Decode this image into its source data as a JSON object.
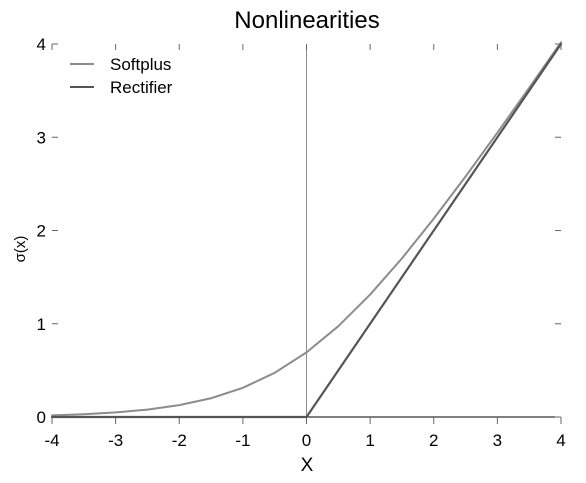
{
  "chart_data": {
    "type": "line",
    "title": "Nonlinearities",
    "xlabel": "X",
    "ylabel": "σ(x)",
    "xlim": [
      -4,
      4
    ],
    "ylim": [
      0,
      4
    ],
    "xticks": [
      -4,
      -3,
      -2,
      -1,
      0,
      1,
      2,
      3,
      4
    ],
    "yticks": [
      0,
      1,
      2,
      3,
      4
    ],
    "legend_position": "top-left",
    "grid": false,
    "series": [
      {
        "name": "Softplus",
        "color": "#8c8c8c",
        "x": [
          -4,
          -3.5,
          -3,
          -2.5,
          -2,
          -1.5,
          -1,
          -0.5,
          0,
          0.5,
          1,
          1.5,
          2,
          2.5,
          3,
          3.5,
          4
        ],
        "y": [
          0.018,
          0.03,
          0.049,
          0.079,
          0.127,
          0.201,
          0.313,
          0.474,
          0.693,
          0.974,
          1.313,
          1.701,
          2.127,
          2.579,
          3.049,
          3.53,
          4.018
        ]
      },
      {
        "name": "Rectifier",
        "color": "#555555",
        "x": [
          -4,
          0,
          4
        ],
        "y": [
          0,
          0,
          4
        ]
      }
    ]
  }
}
